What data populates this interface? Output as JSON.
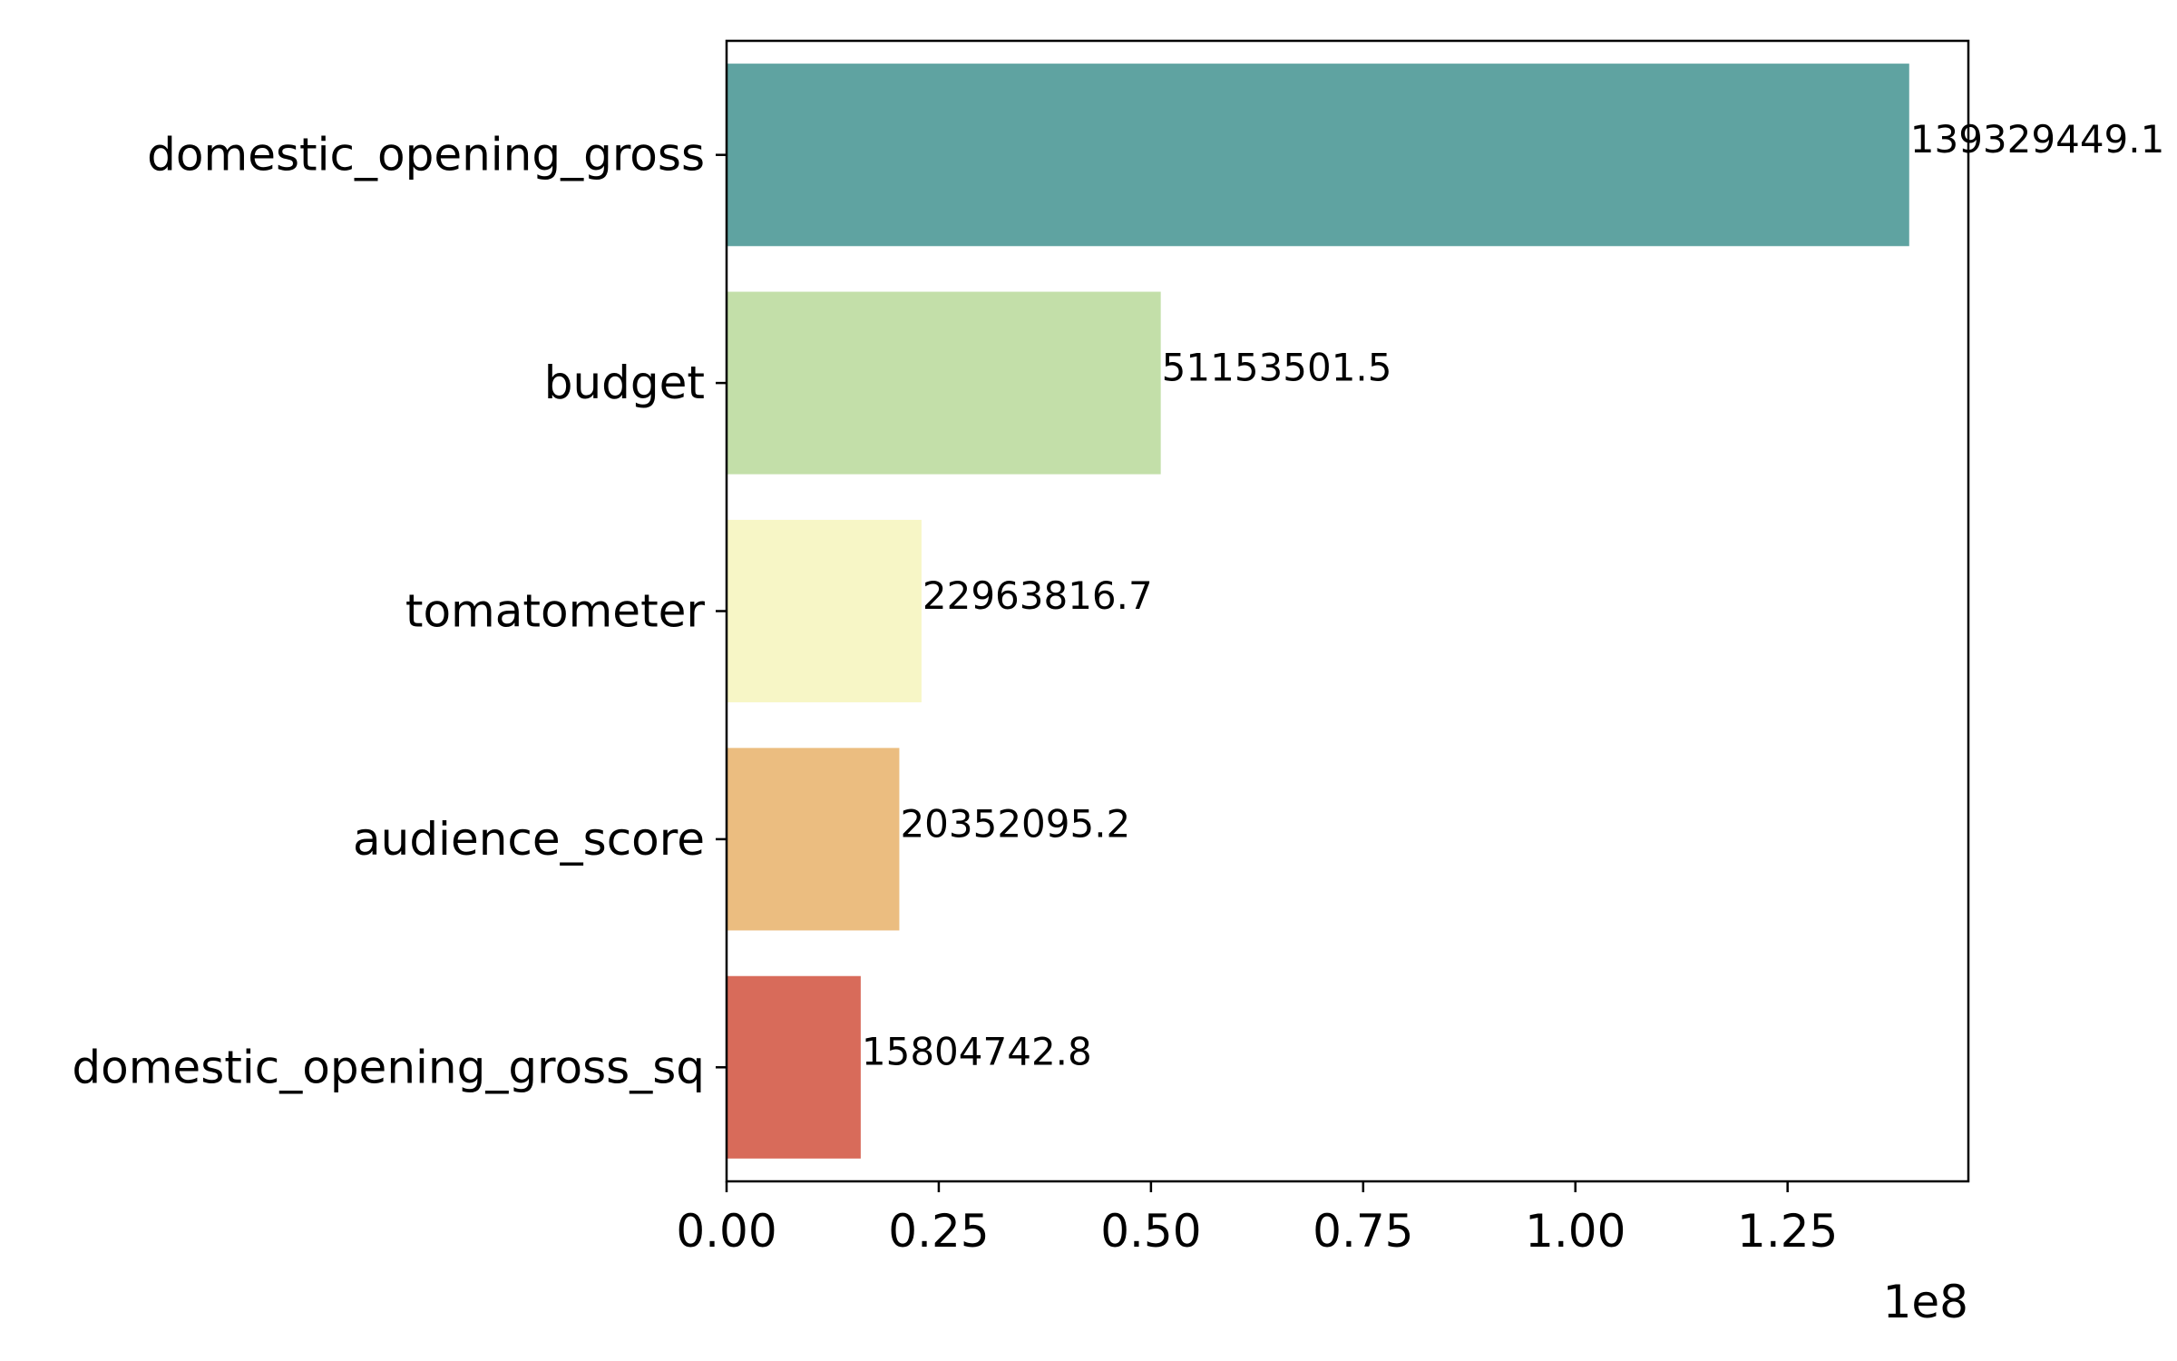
{
  "chart_data": {
    "type": "bar",
    "orientation": "horizontal",
    "title": "",
    "xlabel": "",
    "ylabel": "",
    "x_multiplier_label": "1e8",
    "categories": [
      "domestic_opening_gross",
      "budget",
      "tomatometer",
      "audience_score",
      "domestic_opening_gross_sq"
    ],
    "values": [
      139329449.1,
      51153501.5,
      22963816.7,
      20352095.2,
      15804742.8
    ],
    "value_labels": [
      "139329449.1",
      "51153501.5",
      "22963816.7",
      "20352095.2",
      "15804742.8"
    ],
    "colors": [
      "#5fa3a1",
      "#c3dfa9",
      "#f7f6c6",
      "#ebbd80",
      "#d86b5a"
    ],
    "xlim": [
      0,
      146300000
    ],
    "xticks": [
      0,
      25000000,
      50000000,
      75000000,
      100000000,
      125000000
    ],
    "xtick_labels": [
      "0.00",
      "0.25",
      "0.50",
      "0.75",
      "1.00",
      "1.25"
    ],
    "grid": false,
    "legend": "none"
  }
}
